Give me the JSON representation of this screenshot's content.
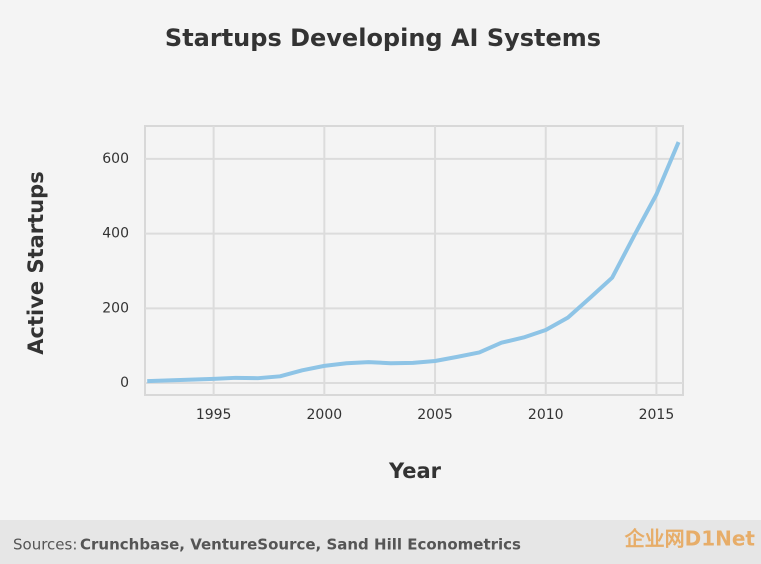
{
  "chart_data": {
    "type": "line",
    "title": "Startups Developing AI Systems",
    "x_label": "Year",
    "y_label": "Active Startups",
    "x": [
      1992,
      1993,
      1994,
      1995,
      1996,
      1997,
      1998,
      1999,
      2000,
      2001,
      2002,
      2003,
      2004,
      2005,
      2006,
      2007,
      2008,
      2009,
      2010,
      2011,
      2012,
      2013,
      2014,
      2015,
      2016
    ],
    "series": [
      {
        "name": "Active Startups",
        "color": "#8ec4e6",
        "values": [
          5,
          7,
          9,
          11,
          14,
          13,
          18,
          34,
          46,
          53,
          56,
          53,
          54,
          59,
          70,
          82,
          108,
          122,
          142,
          175,
          228,
          282,
          395,
          505,
          645
        ]
      }
    ],
    "xlim": [
      1991.9,
      2016.2
    ],
    "xticks": [
      1995,
      2000,
      2005,
      2010,
      2015
    ],
    "ylim": [
      -32,
      688
    ],
    "yticks": [
      0,
      200,
      400,
      600
    ],
    "grid": true,
    "source_prefix": "Sources:",
    "source": "Crunchbase, VentureSource, Sand Hill Econometrics",
    "watermark": "企业网D1Net"
  }
}
